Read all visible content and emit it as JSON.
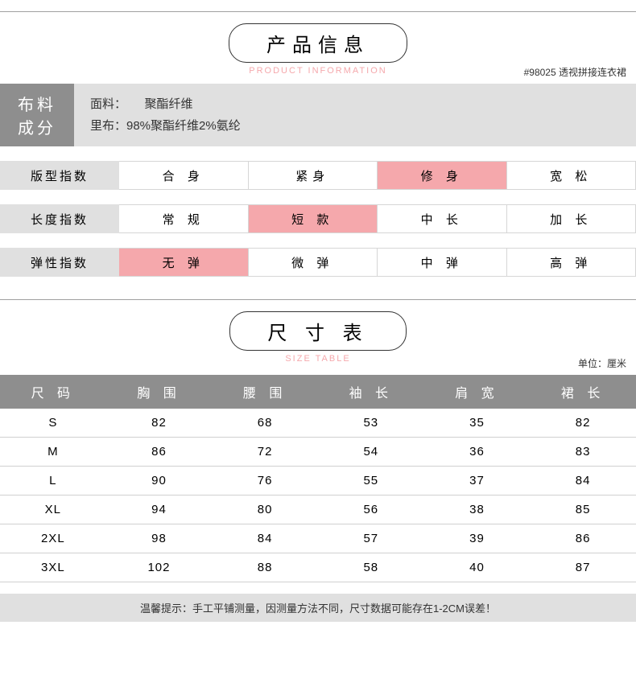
{
  "colors": {
    "highlight": "#f5a8ac",
    "header_bg": "#8e8e8e",
    "light_bg": "#e0e0e0",
    "subtitle": "#f5a8ac"
  },
  "product_info": {
    "title": "产品信息",
    "subtitle": "PRODUCT INFORMATION",
    "code_note": "#98025 透视拼接连衣裙"
  },
  "fabric": {
    "label_line1": "布料",
    "label_line2": "成分",
    "line1": "面料：　　聚酯纤维",
    "line2": "里布：98%聚酯纤维2%氨纶"
  },
  "indexes": [
    {
      "label": "版型指数",
      "options": [
        "合 身",
        "紧身",
        "修 身",
        "宽 松"
      ],
      "highlight": 2
    },
    {
      "label": "长度指数",
      "options": [
        "常 规",
        "短 款",
        "中 长",
        "加 长"
      ],
      "highlight": 1
    },
    {
      "label": "弹性指数",
      "options": [
        "无 弹",
        "微 弹",
        "中 弹",
        "高 弹"
      ],
      "highlight": 0
    }
  ],
  "size_section": {
    "title": "尺 寸 表",
    "subtitle": "SIZE TABLE",
    "unit_note": "单位：厘米",
    "columns": [
      "尺 码",
      "胸 围",
      "腰 围",
      "袖 长",
      "肩 宽",
      "裙 长"
    ],
    "rows": [
      [
        "S",
        "82",
        "68",
        "53",
        "35",
        "82"
      ],
      [
        "M",
        "86",
        "72",
        "54",
        "36",
        "83"
      ],
      [
        "L",
        "90",
        "76",
        "55",
        "37",
        "84"
      ],
      [
        "XL",
        "94",
        "80",
        "56",
        "38",
        "85"
      ],
      [
        "2XL",
        "98",
        "84",
        "57",
        "39",
        "86"
      ],
      [
        "3XL",
        "102",
        "88",
        "58",
        "40",
        "87"
      ]
    ],
    "tip": "温馨提示：手工平铺测量，因测量方法不同，尺寸数据可能存在1-2CM误差！"
  }
}
